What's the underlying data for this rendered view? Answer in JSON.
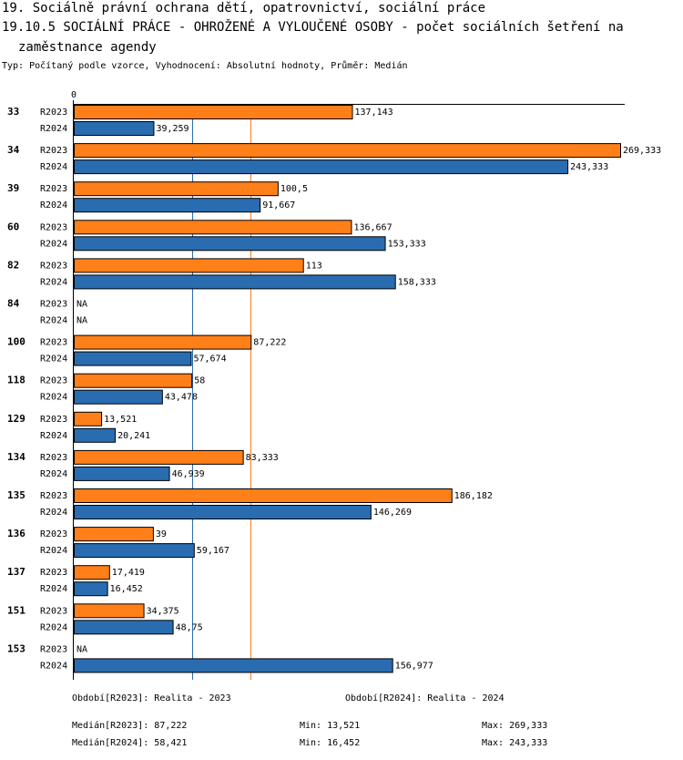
{
  "header": {
    "line1": "19. Sociálně právní ochrana dětí, opatrovnictví, sociální práce",
    "line2": "19.10.5 SOCIÁLNÍ PRÁCE - OHROŽENÉ A VYLOUČENÉ OSOBY - počet sociálních šetření na",
    "line3": "zaměstnance agendy",
    "subtitle": "Typ: Počítaný podle vzorce, Vyhodnocení: Absolutní hodnoty, Průměr: Medián"
  },
  "chart_data": {
    "type": "bar",
    "orientation": "horizontal",
    "title": "19.10.5 SOCIÁLNÍ PRÁCE - OHROŽENÉ A VYLOUČENÉ OSOBY - počet sociálních šetření na zaměstnance agendy",
    "axis_zero_label": "0",
    "xlim": [
      0,
      269.333
    ],
    "categories": [
      "33",
      "34",
      "39",
      "60",
      "82",
      "84",
      "100",
      "118",
      "129",
      "134",
      "135",
      "136",
      "137",
      "151",
      "153"
    ],
    "series": [
      {
        "name": "R2023",
        "color": "#ff7f19",
        "values": [
          137.143,
          269.333,
          100.5,
          136.667,
          113,
          null,
          87.222,
          58,
          13.521,
          83.333,
          186.182,
          39,
          17.419,
          34.375,
          null
        ],
        "labels": [
          "137,143",
          "269,333",
          "100,5",
          "136,667",
          "113",
          "NA",
          "87,222",
          "58",
          "13,521",
          "83,333",
          "186,182",
          "39",
          "17,419",
          "34,375",
          "NA"
        ]
      },
      {
        "name": "R2024",
        "color": "#2a6cb0",
        "values": [
          39.259,
          243.333,
          91.667,
          153.333,
          158.333,
          null,
          57.674,
          43.478,
          20.241,
          46.939,
          146.269,
          59.167,
          16.452,
          48.75,
          156.977
        ],
        "labels": [
          "39,259",
          "243,333",
          "91,667",
          "153,333",
          "158,333",
          "NA",
          "57,674",
          "43,478",
          "20,241",
          "46,939",
          "146,269",
          "59,167",
          "16,452",
          "48,75",
          "156,977"
        ]
      }
    ],
    "median_lines": [
      {
        "series": "R2023",
        "value": 87.222,
        "color": "#ff7f19"
      },
      {
        "series": "R2024",
        "value": 58.421,
        "color": "#2a6cb0"
      }
    ]
  },
  "footer": {
    "period_2023": "Období[R2023]: Realita - 2023",
    "period_2024": "Období[R2024]: Realita - 2024",
    "median_2023": "Medián[R2023]: 87,222",
    "min_2023": "Min: 13,521",
    "max_2023": "Max: 269,333",
    "median_2024": "Medián[R2024]: 58,421",
    "min_2024": "Min: 16,452",
    "max_2024": "Max: 243,333"
  }
}
